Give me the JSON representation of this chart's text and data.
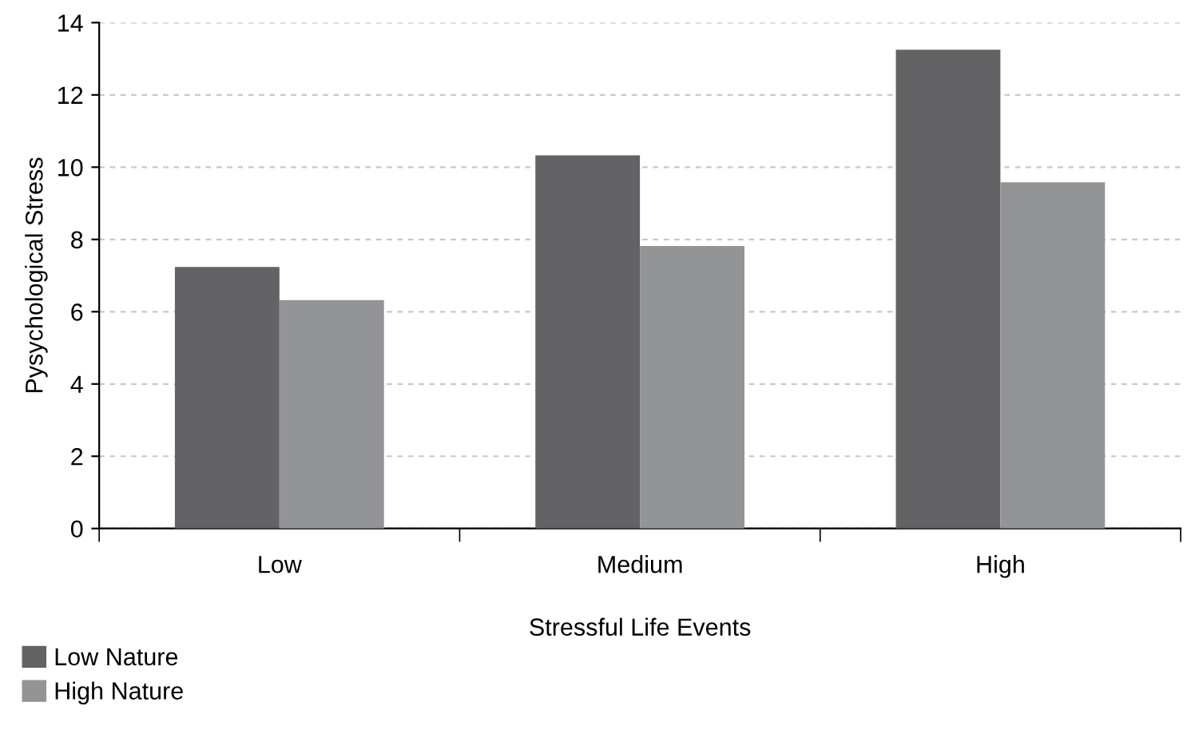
{
  "chart_data": {
    "type": "bar",
    "xlabel": "Stressful Life Events",
    "ylabel": "Pysychological Stress",
    "categories": [
      "Low",
      "Medium",
      "High"
    ],
    "series": [
      {
        "name": "Low Nature",
        "color": "#636365",
        "values": [
          7.24,
          10.33,
          13.25
        ]
      },
      {
        "name": "High Nature",
        "color": "#939496",
        "values": [
          6.32,
          7.82,
          9.58
        ]
      }
    ],
    "ylim": [
      0,
      14
    ],
    "yticks": [
      0,
      2,
      4,
      6,
      8,
      10,
      12,
      14
    ],
    "grid": "y",
    "legend": "bottom left"
  }
}
